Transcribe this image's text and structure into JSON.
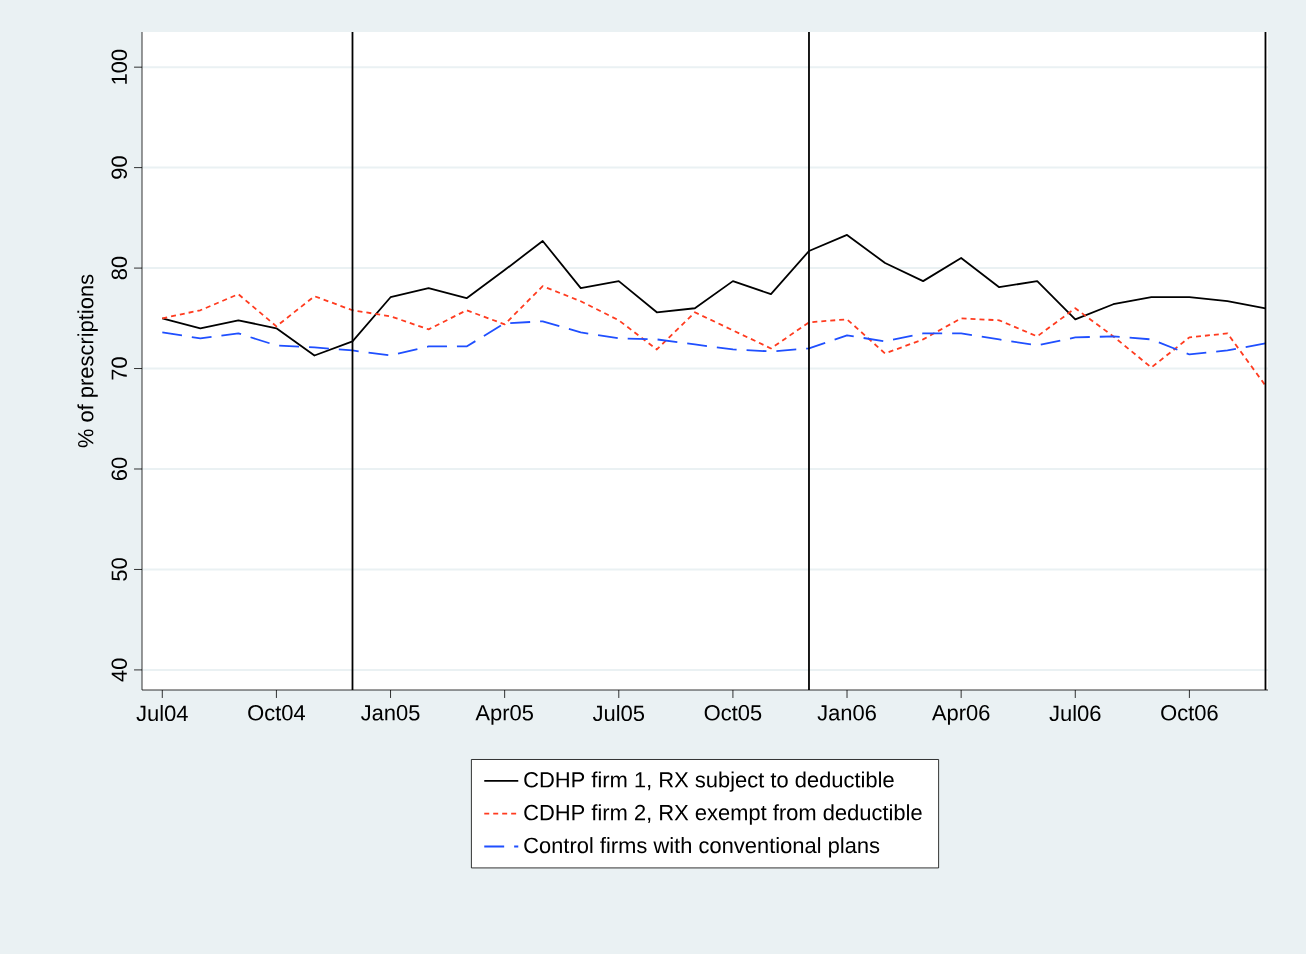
{
  "chart_data": {
    "type": "line",
    "ylabel": "% of prescriptions",
    "x": [
      "2004-07",
      "2004-08",
      "2004-09",
      "2004-10",
      "2004-11",
      "2004-12",
      "2005-01",
      "2005-02",
      "2005-03",
      "2005-04",
      "2005-05",
      "2005-06",
      "2005-07",
      "2005-08",
      "2005-09",
      "2005-10",
      "2005-11",
      "2005-12",
      "2006-01",
      "2006-02",
      "2006-03",
      "2006-04",
      "2006-05",
      "2006-06",
      "2006-07",
      "2006-08",
      "2006-09",
      "2006-10",
      "2006-11",
      "2006-12"
    ],
    "series": [
      {
        "name": "CDHP firm 1, RX subject to deductible",
        "color": "#000000",
        "line_style": "solid",
        "values": [
          75.0,
          74.0,
          74.8,
          74.0,
          71.3,
          72.7,
          77.1,
          78.0,
          77.0,
          79.8,
          82.7,
          78.0,
          78.7,
          75.6,
          76.0,
          78.7,
          77.4,
          81.7,
          83.3,
          80.5,
          78.7,
          81.0,
          78.1,
          78.7,
          74.9,
          76.4,
          77.1,
          77.1,
          76.7,
          76.0
        ]
      },
      {
        "name": "CDHP firm 2, RX exempt from deductible",
        "color": "#ff3b1f",
        "line_style": "dotted",
        "values": [
          75.0,
          75.8,
          77.4,
          74.2,
          77.2,
          75.8,
          75.2,
          73.9,
          75.8,
          74.4,
          78.2,
          76.7,
          74.8,
          71.9,
          75.6,
          73.8,
          72.0,
          74.6,
          74.9,
          71.5,
          72.9,
          75.0,
          74.8,
          73.2,
          76.0,
          73.2,
          70.1,
          73.1,
          73.5,
          68.3
        ]
      },
      {
        "name": "Control firms with conventional plans",
        "color": "#1f4fff",
        "line_style": "dashed",
        "values": [
          73.6,
          73.0,
          73.5,
          72.3,
          72.1,
          71.8,
          71.3,
          72.2,
          72.2,
          74.5,
          74.7,
          73.6,
          73.0,
          72.9,
          72.4,
          71.9,
          71.7,
          72.0,
          73.3,
          72.7,
          73.5,
          73.5,
          72.9,
          72.3,
          73.1,
          73.2,
          72.9,
          71.4,
          71.8,
          72.5
        ]
      }
    ],
    "xlim": [
      "2004-06-15",
      "2006-12-03"
    ],
    "xticks": [
      {
        "value": "2004-07",
        "label": "Jul04"
      },
      {
        "value": "2004-10",
        "label": "Oct04"
      },
      {
        "value": "2005-01",
        "label": "Jan05"
      },
      {
        "value": "2005-04",
        "label": "Apr05"
      },
      {
        "value": "2005-07",
        "label": "Jul05"
      },
      {
        "value": "2005-10",
        "label": "Oct05"
      },
      {
        "value": "2006-01",
        "label": "Jan06"
      },
      {
        "value": "2006-04",
        "label": "Apr06"
      },
      {
        "value": "2006-07",
        "label": "Jul06"
      },
      {
        "value": "2006-10",
        "label": "Oct06"
      }
    ],
    "ylim": [
      38,
      103.5
    ],
    "yticks": [
      40,
      50,
      60,
      70,
      80,
      90,
      100
    ],
    "ref_lines": [
      {
        "axis": "x",
        "value": "2004-12",
        "color": "#000000"
      },
      {
        "axis": "x",
        "value": "2005-12",
        "color": "#000000"
      },
      {
        "axis": "x",
        "value": "2006-12",
        "color": "#000000"
      }
    ],
    "grid": "y",
    "legend": "bottom",
    "marker": "none"
  }
}
